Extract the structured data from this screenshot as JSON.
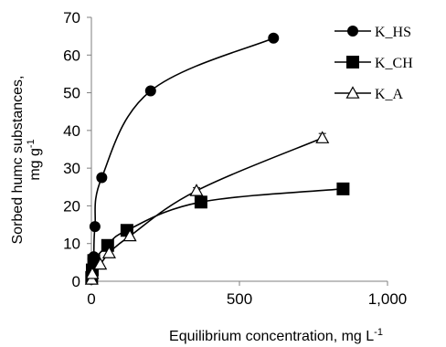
{
  "chart_data": {
    "type": "scatter",
    "title": "",
    "xlabel": {
      "text": "Equilibrium concentration, mg L",
      "superscript": "-1"
    },
    "ylabel": {
      "line1": "Sorbed humc substances,",
      "line2_text": "mg g",
      "line2_superscript": "-1"
    },
    "xlim": [
      0,
      1000
    ],
    "ylim": [
      0,
      70
    ],
    "xticks": [
      "0",
      "500",
      "1,000"
    ],
    "xtick_values": [
      0,
      500,
      1000
    ],
    "yticks": [
      "0",
      "10",
      "20",
      "30",
      "40",
      "50",
      "60",
      "70"
    ],
    "ytick_values": [
      0,
      10,
      20,
      30,
      40,
      50,
      60,
      70
    ],
    "grid": false,
    "legend_position": "top-right",
    "series": [
      {
        "name": "K_HS",
        "marker": "circle",
        "x": [
          0,
          1,
          2,
          5,
          8,
          12,
          35,
          200,
          615
        ],
        "y": [
          0.5,
          1.5,
          3,
          6,
          6.5,
          14.5,
          27.5,
          50.5,
          64.5
        ],
        "error": [
          0,
          0,
          0,
          0,
          0,
          0,
          0,
          0.5,
          0.8
        ]
      },
      {
        "name": "K_CH",
        "marker": "square",
        "x": [
          1,
          3,
          8,
          55,
          120,
          370,
          850
        ],
        "y": [
          1,
          3,
          5.5,
          9.5,
          13.5,
          21,
          24.5
        ],
        "error": [
          0,
          0,
          0,
          0,
          0,
          0,
          0
        ]
      },
      {
        "name": "K_A",
        "marker": "triangle",
        "x": [
          1,
          3,
          30,
          60,
          130,
          355,
          780
        ],
        "y": [
          0.5,
          2,
          4.5,
          7.5,
          12,
          24,
          38
        ],
        "error": [
          0,
          0,
          0,
          0,
          0,
          0.8,
          1.2
        ]
      }
    ]
  },
  "colors": {
    "series": "#000000",
    "axis": "#7f7f7f",
    "marker_fill_open": "#ffffff"
  }
}
